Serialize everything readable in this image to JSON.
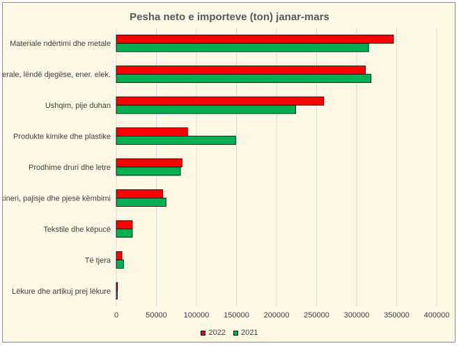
{
  "chart_data": {
    "type": "bar",
    "orientation": "horizontal",
    "title": "Pesha neto e importeve (ton) janar-mars",
    "categories": [
      "Materiale ndërtimi dhe metale",
      "Minerale, lëndë djegëse, ener. elek.",
      "Ushqim, pije duhan",
      "Produkte kimike dhe plastike",
      "Prodhime druri dhe letre",
      "Makineri, pajisje dhe pjesë këmbimi",
      "Tekstile dhe këpucë",
      "Të tjera",
      "Lëkure dhe artikuj prej lëkure"
    ],
    "series": [
      {
        "name": "2022",
        "color": "#ff0000",
        "values": [
          346000,
          311000,
          259000,
          89000,
          82000,
          58000,
          20000,
          7000,
          1500
        ]
      },
      {
        "name": "2021",
        "color": "#00b050",
        "values": [
          315000,
          318000,
          224000,
          149000,
          80000,
          62000,
          20000,
          9000,
          1200
        ]
      }
    ],
    "xlim": [
      0,
      400000
    ],
    "xticks": [
      "0",
      "50000",
      "100000",
      "150000",
      "200000",
      "250000",
      "300000",
      "350000",
      "400000"
    ],
    "xtick_values": [
      0,
      50000,
      100000,
      150000,
      200000,
      250000,
      300000,
      350000,
      400000
    ],
    "grid": true,
    "legend_position": "bottom"
  }
}
